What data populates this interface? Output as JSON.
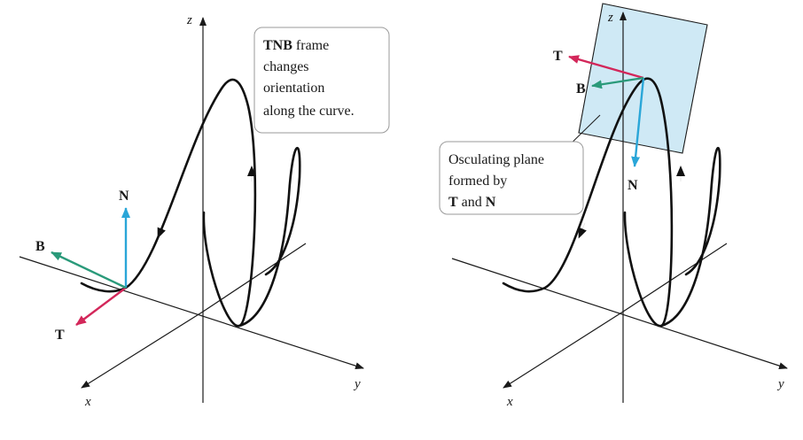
{
  "colors": {
    "T": "#d3275a",
    "N": "#2aa6d8",
    "B": "#2a9a7a",
    "plane_fill": "#cfe9f5",
    "plane_stroke": "#1a1a1a"
  },
  "left_figure": {
    "axes": {
      "x": "x",
      "y": "y",
      "z": "z"
    },
    "vectors": {
      "T": "T",
      "N": "N",
      "B": "B"
    },
    "callout": {
      "bold": "TNB",
      "line1_rest": " frame",
      "line2": "changes",
      "line3": "orientation",
      "line4": "along the curve."
    }
  },
  "right_figure": {
    "axes": {
      "x": "x",
      "y": "y",
      "z": "z"
    },
    "vectors": {
      "T": "T",
      "N": "N",
      "B": "B"
    },
    "callout": {
      "line1": "Osculating plane",
      "line2": "formed by",
      "bold1": "T",
      "mid": " and ",
      "bold2": "N"
    }
  }
}
